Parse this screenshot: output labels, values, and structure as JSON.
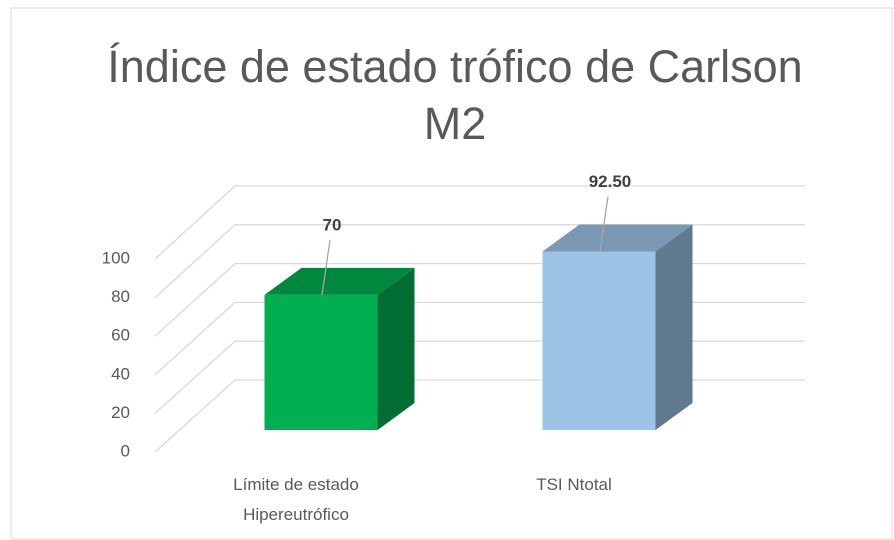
{
  "chart_data": {
    "type": "bar3d",
    "title": "Índice de estado trófico de Carlson M2",
    "categories": [
      "Límite de estado Hipereutrófico",
      "TSI Ntotal"
    ],
    "values": [
      70,
      92.5
    ],
    "value_labels": [
      "70",
      "92.50"
    ],
    "colors": [
      "#00b050",
      "#9dc3e6"
    ],
    "ylim": [
      0,
      100
    ],
    "yticks": [
      0,
      20,
      40,
      60,
      80,
      100
    ],
    "grid": true
  }
}
